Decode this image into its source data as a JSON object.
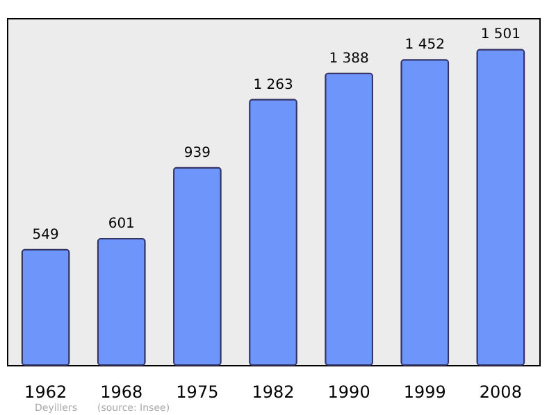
{
  "chart_data": {
    "type": "bar",
    "categories": [
      "1962",
      "1968",
      "1975",
      "1982",
      "1990",
      "1999",
      "2008"
    ],
    "values": [
      549,
      601,
      939,
      1263,
      1388,
      1452,
      1501
    ],
    "value_labels": [
      "549",
      "601",
      "939",
      "1 263",
      "1 388",
      "1 452",
      "1 501"
    ],
    "color": "#6e95fa",
    "annotations": [
      "Deyillers",
      "(source: Insee)"
    ]
  }
}
